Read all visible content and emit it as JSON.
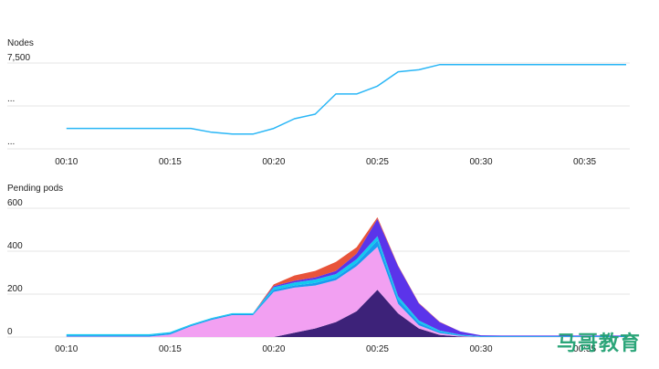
{
  "colors": {
    "nodes_line": "#29b6f6",
    "grid": "#e6e6e6",
    "text": "#222222"
  },
  "watermark": "马哥教育",
  "chart_data": [
    {
      "type": "line",
      "title": "Nodes",
      "y_tick_labels": [
        "7,500",
        "...",
        "..."
      ],
      "x_tick_labels": [
        "00:10",
        "00:15",
        "00:20",
        "00:25",
        "00:30",
        "00:35"
      ],
      "x_minutes": [
        10,
        11,
        12,
        13,
        14,
        15,
        16,
        17,
        18,
        19,
        20,
        21,
        22,
        23,
        24,
        25,
        26,
        27,
        28,
        29,
        30,
        31,
        32,
        33,
        34,
        35,
        36,
        37
      ],
      "series": [
        {
          "name": "",
          "color": "#29b6f6",
          "values": [
            5000,
            5000,
            5000,
            5000,
            5000,
            5000,
            5000,
            4850,
            4780,
            4780,
            5000,
            5380,
            5560,
            6350,
            6350,
            6660,
            7220,
            7300,
            7500,
            7500,
            7500,
            7500,
            7500,
            7500,
            7500,
            7500,
            7500,
            7500
          ]
        }
      ],
      "ylim": [
        4200,
        7600
      ],
      "grid": true
    },
    {
      "type": "area",
      "stacked": true,
      "title": "Pending pods",
      "y_tick_labels": [
        "600",
        "400",
        "200",
        "0"
      ],
      "y_ticks": [
        600,
        400,
        200,
        0
      ],
      "x_tick_labels": [
        "00:10",
        "00:15",
        "00:20",
        "00:25",
        "00:30",
        "00:35"
      ],
      "x_minutes": [
        10,
        11,
        12,
        13,
        14,
        15,
        16,
        17,
        18,
        19,
        20,
        21,
        22,
        23,
        24,
        25,
        26,
        27,
        28,
        29,
        30,
        31,
        32,
        33,
        34,
        35,
        36,
        37
      ],
      "series": [
        {
          "color": "#3d2279",
          "values": [
            0,
            0,
            0,
            0,
            0,
            0,
            0,
            0,
            0,
            0,
            0,
            20,
            40,
            70,
            120,
            220,
            110,
            40,
            10,
            2,
            0,
            0,
            0,
            0,
            0,
            0,
            0,
            0
          ]
        },
        {
          "color": "#f2a0f2",
          "values": [
            2,
            2,
            2,
            2,
            2,
            12,
            50,
            80,
            102,
            102,
            210,
            210,
            200,
            195,
            210,
            200,
            45,
            15,
            8,
            3,
            0,
            0,
            0,
            0,
            0,
            0,
            0,
            0
          ]
        },
        {
          "color": "#1a9bf0",
          "values": [
            6,
            6,
            6,
            6,
            6,
            6,
            5,
            5,
            5,
            5,
            10,
            10,
            12,
            12,
            15,
            30,
            20,
            12,
            6,
            3,
            2,
            2,
            2,
            2,
            2,
            2,
            2,
            2
          ]
        },
        {
          "color": "#12c9ef",
          "values": [
            5,
            5,
            5,
            5,
            5,
            5,
            4,
            4,
            4,
            4,
            12,
            14,
            16,
            16,
            18,
            20,
            15,
            10,
            6,
            3,
            2,
            2,
            2,
            2,
            2,
            2,
            2,
            2
          ]
        },
        {
          "color": "#5b34ea",
          "values": [
            0,
            0,
            0,
            0,
            0,
            0,
            0,
            0,
            0,
            0,
            5,
            8,
            10,
            15,
            25,
            80,
            140,
            80,
            40,
            15,
            4,
            3,
            3,
            3,
            3,
            3,
            3,
            3
          ]
        },
        {
          "color": "#e8543a",
          "values": [
            0,
            0,
            0,
            0,
            0,
            0,
            0,
            0,
            0,
            0,
            8,
            25,
            30,
            42,
            30,
            8,
            3,
            2,
            1,
            0,
            0,
            0,
            0,
            0,
            0,
            0,
            0,
            0
          ]
        }
      ],
      "ylim": [
        0,
        640
      ],
      "grid": true
    }
  ]
}
